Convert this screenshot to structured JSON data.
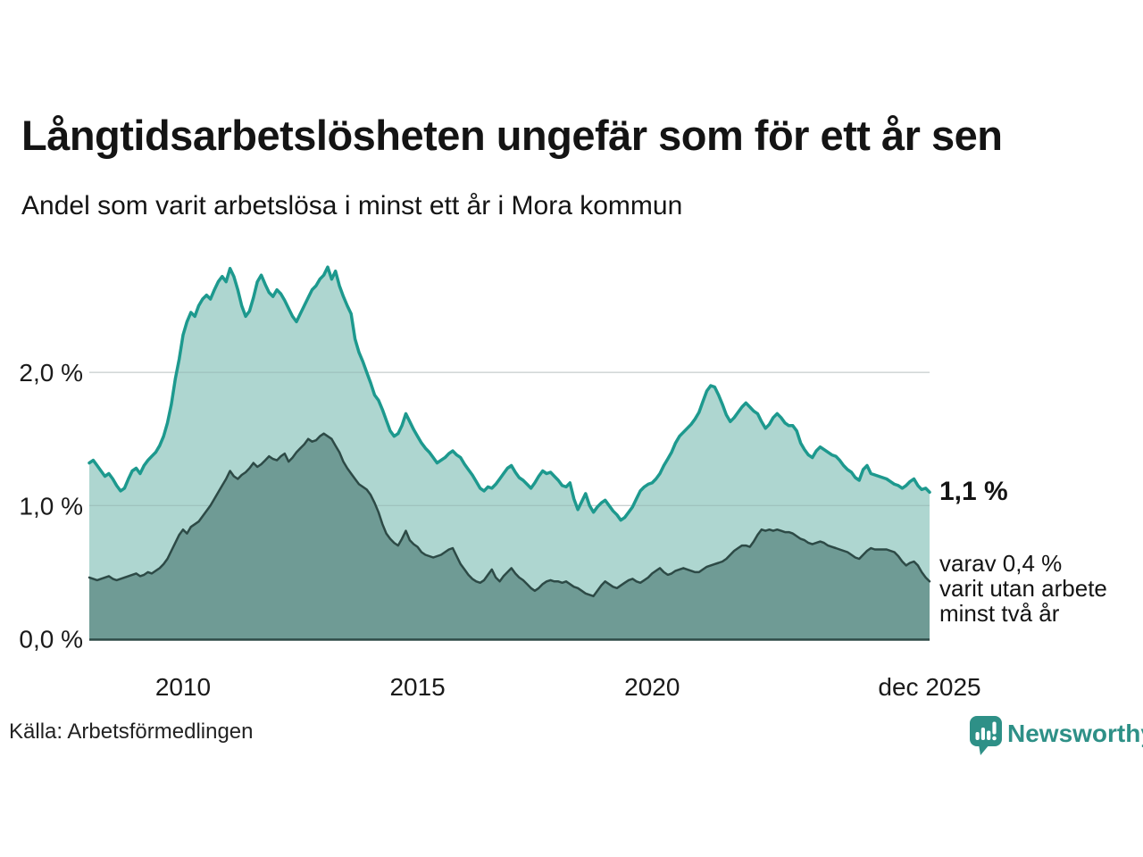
{
  "header": {
    "title": "Långtidsarbetslösheten ungefär som för ett år sen",
    "subtitle": "Andel som varit arbetslösa i minst ett år i Mora kommun"
  },
  "colors": {
    "accent_teal": "#1d998e",
    "light_fill": "#aed6d0",
    "dark_fill": "#6f9b95",
    "dark_line": "#2d4a46",
    "grid": "#d8dcdc",
    "text": "#1a1a1a",
    "brand_teal": "#2e9087"
  },
  "chart_data": {
    "type": "area",
    "title": "Långtidsarbetslösheten ungefär som för ett år sen",
    "subtitle": "Andel som varit arbetslösa i minst ett år i Mora kommun",
    "unit": "%",
    "x_start": "2008-01",
    "x_end": "2025-12",
    "x_frequency": "monthly",
    "ylim": [
      0,
      2.9
    ],
    "grid": "horizontal",
    "y_ticks": [
      {
        "label": "2,0 %",
        "value": 2.0
      },
      {
        "label": "1,0 %",
        "value": 1.0
      },
      {
        "label": "0,0 %",
        "value": 0.0
      }
    ],
    "x_ticks": [
      {
        "label": "2010",
        "month_index": 24
      },
      {
        "label": "2015",
        "month_index": 84
      },
      {
        "label": "2020",
        "month_index": 144
      },
      {
        "label": "dec 2025",
        "month_index": 215
      }
    ],
    "series": [
      {
        "name": "Andel arbetslösa minst ett år",
        "color": "#1d998e",
        "fill": "#aed6d0",
        "latest_label": "1,1 %",
        "values": [
          1.32,
          1.34,
          1.3,
          1.26,
          1.22,
          1.24,
          1.2,
          1.15,
          1.11,
          1.13,
          1.2,
          1.26,
          1.28,
          1.24,
          1.3,
          1.34,
          1.37,
          1.4,
          1.45,
          1.52,
          1.62,
          1.76,
          1.95,
          2.1,
          2.28,
          2.38,
          2.45,
          2.42,
          2.5,
          2.55,
          2.58,
          2.55,
          2.62,
          2.68,
          2.72,
          2.68,
          2.78,
          2.72,
          2.62,
          2.5,
          2.42,
          2.46,
          2.56,
          2.68,
          2.73,
          2.66,
          2.6,
          2.57,
          2.62,
          2.59,
          2.54,
          2.48,
          2.42,
          2.38,
          2.44,
          2.5,
          2.56,
          2.62,
          2.65,
          2.7,
          2.73,
          2.79,
          2.7,
          2.76,
          2.65,
          2.57,
          2.5,
          2.44,
          2.25,
          2.15,
          2.08,
          2.0,
          1.92,
          1.83,
          1.79,
          1.72,
          1.64,
          1.56,
          1.52,
          1.54,
          1.6,
          1.69,
          1.63,
          1.57,
          1.52,
          1.47,
          1.43,
          1.4,
          1.36,
          1.32,
          1.34,
          1.36,
          1.39,
          1.41,
          1.38,
          1.36,
          1.31,
          1.27,
          1.23,
          1.18,
          1.13,
          1.11,
          1.14,
          1.13,
          1.16,
          1.2,
          1.24,
          1.28,
          1.3,
          1.25,
          1.21,
          1.19,
          1.16,
          1.13,
          1.17,
          1.22,
          1.26,
          1.24,
          1.25,
          1.22,
          1.19,
          1.15,
          1.14,
          1.17,
          1.05,
          0.97,
          1.03,
          1.09,
          1.0,
          0.95,
          0.99,
          1.02,
          1.04,
          1.0,
          0.96,
          0.93,
          0.89,
          0.91,
          0.95,
          0.99,
          1.05,
          1.11,
          1.14,
          1.16,
          1.17,
          1.2,
          1.24,
          1.3,
          1.35,
          1.4,
          1.47,
          1.52,
          1.55,
          1.58,
          1.61,
          1.65,
          1.7,
          1.78,
          1.86,
          1.9,
          1.89,
          1.83,
          1.76,
          1.68,
          1.63,
          1.66,
          1.7,
          1.74,
          1.77,
          1.74,
          1.71,
          1.69,
          1.63,
          1.58,
          1.61,
          1.66,
          1.69,
          1.66,
          1.62,
          1.6,
          1.6,
          1.56,
          1.47,
          1.42,
          1.38,
          1.36,
          1.41,
          1.44,
          1.42,
          1.4,
          1.38,
          1.37,
          1.34,
          1.3,
          1.27,
          1.25,
          1.21,
          1.19,
          1.27,
          1.3,
          1.24,
          1.23,
          1.22,
          1.21,
          1.2,
          1.18,
          1.16,
          1.15,
          1.13,
          1.15,
          1.18,
          1.2,
          1.15,
          1.12,
          1.13,
          1.1
        ]
      },
      {
        "name": "varav arbetslösa minst två år",
        "color": "#2d4a46",
        "fill": "#6f9b95",
        "latest_label": "0,4 %",
        "values": [
          0.46,
          0.45,
          0.44,
          0.45,
          0.46,
          0.47,
          0.45,
          0.44,
          0.45,
          0.46,
          0.47,
          0.48,
          0.49,
          0.47,
          0.48,
          0.5,
          0.49,
          0.51,
          0.53,
          0.56,
          0.6,
          0.66,
          0.72,
          0.78,
          0.82,
          0.79,
          0.84,
          0.86,
          0.88,
          0.92,
          0.96,
          1.0,
          1.05,
          1.1,
          1.15,
          1.2,
          1.26,
          1.22,
          1.2,
          1.23,
          1.25,
          1.28,
          1.32,
          1.29,
          1.31,
          1.34,
          1.37,
          1.35,
          1.34,
          1.37,
          1.39,
          1.33,
          1.36,
          1.4,
          1.43,
          1.46,
          1.5,
          1.48,
          1.49,
          1.52,
          1.54,
          1.52,
          1.5,
          1.45,
          1.4,
          1.33,
          1.28,
          1.24,
          1.2,
          1.16,
          1.14,
          1.12,
          1.08,
          1.02,
          0.95,
          0.86,
          0.79,
          0.75,
          0.72,
          0.7,
          0.75,
          0.81,
          0.74,
          0.71,
          0.69,
          0.65,
          0.63,
          0.62,
          0.61,
          0.62,
          0.63,
          0.65,
          0.67,
          0.68,
          0.62,
          0.56,
          0.52,
          0.48,
          0.45,
          0.43,
          0.42,
          0.44,
          0.48,
          0.52,
          0.46,
          0.43,
          0.47,
          0.5,
          0.53,
          0.49,
          0.46,
          0.44,
          0.41,
          0.38,
          0.36,
          0.38,
          0.41,
          0.43,
          0.44,
          0.43,
          0.43,
          0.42,
          0.43,
          0.41,
          0.39,
          0.38,
          0.36,
          0.34,
          0.33,
          0.32,
          0.36,
          0.4,
          0.43,
          0.41,
          0.39,
          0.38,
          0.4,
          0.42,
          0.44,
          0.45,
          0.43,
          0.42,
          0.44,
          0.46,
          0.49,
          0.51,
          0.53,
          0.5,
          0.48,
          0.49,
          0.51,
          0.52,
          0.53,
          0.52,
          0.51,
          0.5,
          0.5,
          0.52,
          0.54,
          0.55,
          0.56,
          0.57,
          0.58,
          0.6,
          0.63,
          0.66,
          0.68,
          0.7,
          0.7,
          0.69,
          0.73,
          0.78,
          0.82,
          0.81,
          0.82,
          0.81,
          0.82,
          0.81,
          0.8,
          0.8,
          0.79,
          0.77,
          0.75,
          0.74,
          0.72,
          0.71,
          0.72,
          0.73,
          0.72,
          0.7,
          0.69,
          0.68,
          0.67,
          0.66,
          0.65,
          0.63,
          0.61,
          0.6,
          0.63,
          0.66,
          0.68,
          0.67,
          0.67,
          0.67,
          0.67,
          0.66,
          0.65,
          0.62,
          0.58,
          0.55,
          0.57,
          0.58,
          0.55,
          0.5,
          0.46,
          0.43
        ]
      }
    ],
    "annotations": {
      "latest_total": "1,1 %",
      "latest_two_year_lines": [
        "varav 0,4 %",
        "varit utan arbete",
        "minst två år"
      ]
    }
  },
  "footer": {
    "source": "Källa: Arbetsförmedlingen",
    "brand": "Newsworthy"
  }
}
